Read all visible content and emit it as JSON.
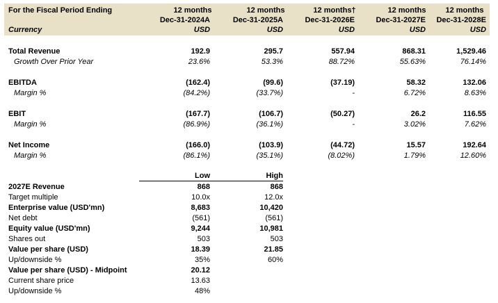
{
  "header": {
    "label": "For the Fiscal Period Ending",
    "currency_label": "Currency",
    "columns": [
      {
        "period": "12 months",
        "date": "Dec-31-2024A",
        "currency": "USD"
      },
      {
        "period": "12 months",
        "date": "Dec-31-2025A",
        "currency": "USD"
      },
      {
        "period": "12 months†",
        "date": "Dec-31-2026E",
        "currency": "USD"
      },
      {
        "period": "12 months",
        "date": "Dec-31-2027E",
        "currency": "USD"
      },
      {
        "period": "12 months",
        "date": "Dec-31-2028E",
        "currency": "USD"
      }
    ]
  },
  "financials": [
    {
      "label": "Total Revenue",
      "values": [
        "192.9",
        "295.7",
        "557.94",
        "868.31",
        "1,529.46"
      ],
      "sub_label": "Growth Over Prior Year",
      "sub_values": [
        "23.6%",
        "53.3%",
        "88.72%",
        "55.63%",
        "76.14%"
      ]
    },
    {
      "label": "EBITDA",
      "values": [
        "(162.4)",
        "(99.6)",
        "(37.19)",
        "58.32",
        "132.06"
      ],
      "sub_label": "Margin %",
      "sub_values": [
        "(84.2%)",
        "(33.7%)",
        "-",
        "6.72%",
        "8.63%"
      ]
    },
    {
      "label": "EBIT",
      "values": [
        "(167.7)",
        "(106.7)",
        "(50.27)",
        "26.2",
        "116.55"
      ],
      "sub_label": "Margin %",
      "sub_values": [
        "(86.9%)",
        "(36.1%)",
        "-",
        "3.02%",
        "7.62%"
      ]
    },
    {
      "label": "Net Income",
      "values": [
        "(166.0)",
        "(103.9)",
        "(44.72)",
        "15.57",
        "192.64"
      ],
      "sub_label": "Margin %",
      "sub_values": [
        "(86.1%)",
        "(35.1%)",
        "(8.02%)",
        "1.79%",
        "12.60%"
      ]
    }
  ],
  "valuation": {
    "col_low": "Low",
    "col_high": "High",
    "rows": [
      {
        "label": "2027E Revenue",
        "low": "868",
        "high": "868",
        "bold": true
      },
      {
        "label": "Target multiple",
        "low": "10.0x",
        "high": "12.0x",
        "bold": false
      },
      {
        "label": "Enterprise value (USD'mn)",
        "low": "8,683",
        "high": "10,420",
        "bold": true
      },
      {
        "label": "Net debt",
        "low": "(561)",
        "high": "(561)",
        "bold": false
      },
      {
        "label": "Equity value (USD'mn)",
        "low": "9,244",
        "high": "10,981",
        "bold": true
      },
      {
        "label": "Shares out",
        "low": "503",
        "high": "503",
        "bold": false
      },
      {
        "label": "Value per share (USD)",
        "low": "18.39",
        "high": "21.85",
        "bold": true
      },
      {
        "label": "Up/downside %",
        "low": "35%",
        "high": "60%",
        "bold": false
      },
      {
        "label": "Value per share (USD) - Midpoint",
        "low": "20.12",
        "high": "",
        "bold": true
      },
      {
        "label": "Current share price",
        "low": "13.63",
        "high": "",
        "bold": false
      },
      {
        "label": "Up/downside %",
        "low": "48%",
        "high": "",
        "bold": false
      }
    ]
  }
}
